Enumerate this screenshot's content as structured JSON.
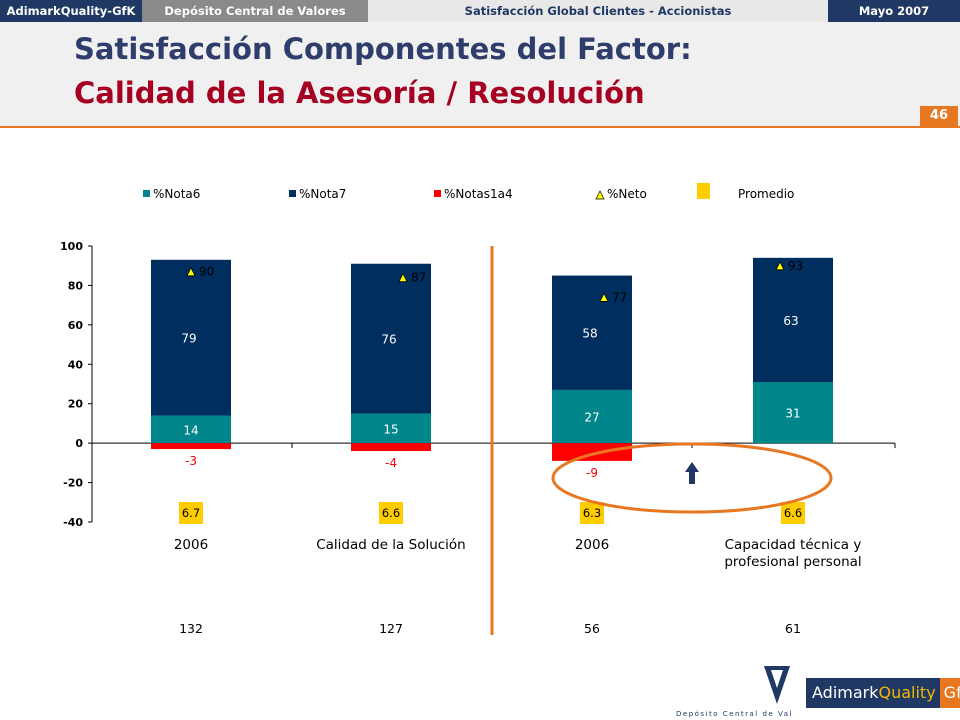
{
  "header": {
    "brand": "AdimarkQuality-GfK",
    "client": "Depósito Central de Valores",
    "study": "Satisfacción Global Clientes - Accionistas",
    "date": "Mayo 2007",
    "title_line1": "Satisfacción Componentes del Factor:",
    "title_line2": "Calidad de la Asesoría / Resolución",
    "page_number": "46"
  },
  "footer": {
    "dcv_caption": "Depósito Central de Valores",
    "amq_part1": "Adimark",
    "amq_part2": "Quality",
    "amq_part3": "GfK"
  },
  "colors": {
    "nota6": "#00868b",
    "nota7": "#002f5f",
    "notas1a4": "#ff0000",
    "neto_marker": "#ffff00",
    "promedio": "#ffcc00",
    "accent_orange": "#e87722",
    "title_blue": "#2e3d6b",
    "title_red": "#a50021"
  },
  "chart_data": {
    "type": "bar",
    "stacked": true,
    "categories": [
      "2006",
      "Calidad de la Solución",
      "2006",
      "Capacidad técnica y\nprofesional personal"
    ],
    "series": [
      {
        "name": "%Nota6",
        "values": [
          14,
          15,
          27,
          31
        ]
      },
      {
        "name": "%Nota7",
        "values": [
          79,
          76,
          58,
          63
        ]
      },
      {
        "name": "%Notas1a4",
        "values": [
          -3,
          -4,
          -9,
          null
        ]
      }
    ],
    "neto": {
      "name": "%Neto",
      "values": [
        90,
        87,
        77,
        93
      ]
    },
    "promedio": {
      "name": "Promedio",
      "values": [
        "6.7",
        "6.6",
        "6.3",
        "6.6"
      ]
    },
    "bases": [
      "132",
      "127",
      "56",
      "61"
    ],
    "ylim": [
      -40,
      100
    ],
    "yticks": [
      -40,
      -20,
      0,
      20,
      40,
      60,
      80,
      100
    ],
    "legend_position": "top",
    "grid": false
  }
}
